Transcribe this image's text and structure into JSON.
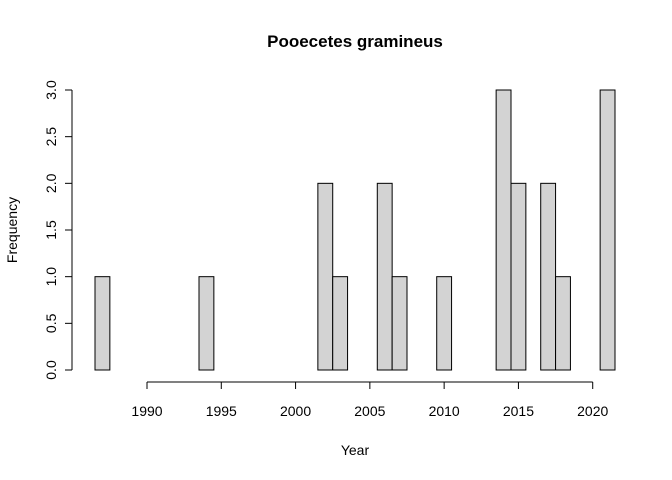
{
  "chart_data": {
    "type": "bar",
    "title": "Pooecetes gramineus",
    "xlabel": "Year",
    "ylabel": "Frequency",
    "x": [
      1987,
      1988,
      1989,
      1990,
      1991,
      1992,
      1993,
      1994,
      1995,
      1996,
      1997,
      1998,
      1999,
      2000,
      2001,
      2002,
      2003,
      2004,
      2005,
      2006,
      2007,
      2008,
      2009,
      2010,
      2011,
      2012,
      2013,
      2014,
      2015,
      2016,
      2017,
      2018,
      2019,
      2020,
      2021
    ],
    "values": [
      1,
      0,
      0,
      0,
      0,
      0,
      0,
      1,
      0,
      0,
      0,
      0,
      0,
      0,
      0,
      2,
      1,
      0,
      0,
      2,
      1,
      0,
      0,
      1,
      0,
      0,
      0,
      3,
      2,
      0,
      2,
      1,
      0,
      0,
      3
    ],
    "xlim": [
      1986.5,
      2021.5
    ],
    "ylim": [
      0,
      3
    ],
    "xticks": [
      1990,
      1995,
      2000,
      2005,
      2010,
      2015,
      2020
    ],
    "xtick_labels": [
      "1990",
      "1995",
      "2000",
      "2005",
      "2010",
      "2015",
      "2020"
    ],
    "yticks": [
      0,
      0.5,
      1,
      1.5,
      2,
      2.5,
      3
    ],
    "ytick_labels": [
      "0.0",
      "0.5",
      "1.0",
      "1.5",
      "2.0",
      "2.5",
      "3.0"
    ],
    "grid": false,
    "legend": "none"
  }
}
